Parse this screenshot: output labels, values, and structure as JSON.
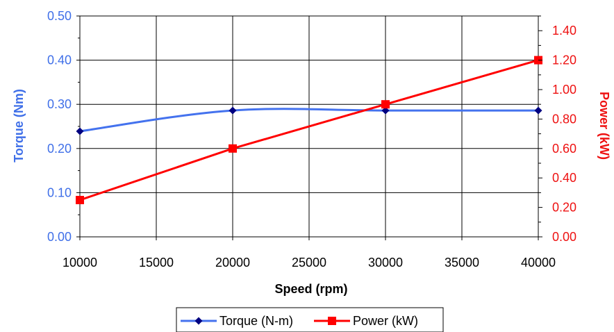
{
  "chart_data": {
    "type": "line",
    "title": "",
    "xlabel": "Speed (rpm)",
    "ylabel_left": "Torque (Nm)",
    "ylabel_right": "Power (kW)",
    "xlim": [
      10000,
      40000
    ],
    "ylim_left": [
      0,
      0.5
    ],
    "ylim_right": [
      0,
      1.5
    ],
    "grid": true,
    "legend_position": "bottom",
    "x_ticks": [
      "10000",
      "15000",
      "20000",
      "25000",
      "30000",
      "35000",
      "40000"
    ],
    "y_left_ticks": [
      "0.00",
      "0.10",
      "0.20",
      "0.30",
      "0.40",
      "0.50"
    ],
    "y_right_ticks": [
      "0.00",
      "0.20",
      "0.40",
      "0.60",
      "0.80",
      "1.00",
      "1.20",
      "1.40"
    ],
    "series": [
      {
        "name": "Torque (N-m)",
        "axis": "left",
        "color": "#4472ee",
        "marker_color": "#000080",
        "marker": "diamond",
        "smooth": true,
        "x": [
          10000,
          20000,
          30000,
          40000
        ],
        "y": [
          0.239,
          0.286,
          0.286,
          0.286
        ]
      },
      {
        "name": "Power (kW)",
        "axis": "right",
        "color": "#ff0000",
        "marker_color": "#ff0000",
        "marker": "square",
        "smooth": false,
        "x": [
          10000,
          20000,
          30000,
          40000
        ],
        "y": [
          0.25,
          0.6,
          0.9,
          1.2
        ]
      }
    ]
  },
  "colors": {
    "left_axis": "#3f6fe8",
    "right_axis": "#ee1111"
  }
}
